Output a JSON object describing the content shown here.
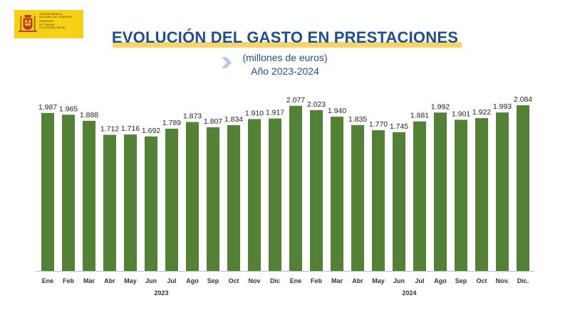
{
  "logo": {
    "text_lines": [
      "VICEPRESIDENCIA",
      "SEGUNDA DEL GOBIERNO",
      "MINISTERIO",
      "DE TRABAJO",
      "Y ECONOMÍA SOCIAL"
    ],
    "icon": "spain-coat-of-arms-icon"
  },
  "header": {
    "title": "EVOLUCIÓN DEL GASTO EN PRESTACIONES",
    "subtitle_units": "(millones  de euros)",
    "subtitle_period": "Año 2023-2024",
    "arrow_icon": "chevron-right-icon"
  },
  "colors": {
    "bar": "#538135",
    "title": "#1f4e8c",
    "highlight": "#f7d36a",
    "logo_bg": "#f7d117"
  },
  "chart_data": {
    "type": "bar",
    "categories": [
      "Ene",
      "Feb",
      "Mar",
      "Abr",
      "May",
      "Jun",
      "Jul",
      "Ago",
      "Sep",
      "Oct",
      "Nov",
      "Dic",
      "Ene",
      "Feb",
      "Mar",
      "Abr",
      "May",
      "Jun",
      "Jul",
      "Ago",
      "Sep",
      "Oct",
      "Nov.",
      "Dic."
    ],
    "values": [
      1987,
      1965,
      1888,
      1712,
      1716,
      1692,
      1789,
      1873,
      1807,
      1834,
      1910,
      1917,
      2077,
      2023,
      1940,
      1835,
      1770,
      1745,
      1881,
      1992,
      1901,
      1922,
      1993,
      2084
    ],
    "value_labels": [
      "1.987",
      "1.965",
      "1.888",
      "1.712",
      "1.716",
      "1.692",
      "1.789",
      "1.873",
      "1.807",
      "1.834",
      "1.910",
      "1.917",
      "2.077",
      "2.023",
      "1.940",
      "1.835",
      "1.770",
      "1.745",
      "1.881",
      "1.992",
      "1.901",
      "1.922",
      "1.993",
      "2.084"
    ],
    "groups": [
      {
        "label": "2023",
        "start": 0,
        "end": 11
      },
      {
        "label": "2024",
        "start": 12,
        "end": 23
      }
    ],
    "ylim": [
      0,
      2084
    ],
    "grid": false,
    "legend": "none"
  }
}
